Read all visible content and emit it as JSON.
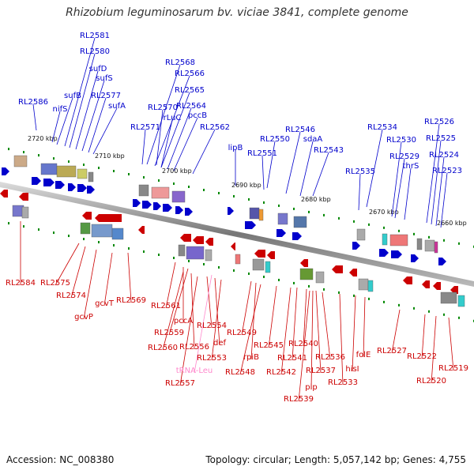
{
  "title": "Rhizobium leguminosarum bv. viciae 3841, complete genome",
  "footer": {
    "accession": "Accession: NC_008380",
    "summary": "Topology: circular; Length: 5,057,142 bp; Genes: 4,755"
  },
  "colors": {
    "forward": "#0000cc",
    "reverse": "#cc0000",
    "trna": "#ff88cc",
    "backbone": "#888888",
    "tick": "#008800"
  },
  "kbp_ticks": [
    "2720 kbp",
    "2710 kbp",
    "2700 kbp",
    "2690 kbp",
    "2680 kbp",
    "2670 kbp",
    "2660 kbp"
  ],
  "forward_labels": [
    "RL2581",
    "RL2580",
    "sufD",
    "sufS",
    "RL2577",
    "sufA",
    "sufB",
    "nifS",
    "RL2586",
    "RL2568",
    "RL2566",
    "RL2565",
    "RL2564",
    "pccB",
    "RL2570",
    "rLuC",
    "RL2571",
    "RL2562",
    "lipB",
    "RL2550",
    "RL2551",
    "RL2546",
    "sdaA",
    "RL2543",
    "RL2534",
    "RL2535",
    "RL2530",
    "RL2529",
    "thrS",
    "RL2526",
    "RL2525",
    "RL2524",
    "RL2523"
  ],
  "reverse_labels": [
    "RL2584",
    "RL2575",
    "RL2574",
    "gcvP",
    "gcvT",
    "RL2569",
    "RL2561",
    "pccA",
    "RL2559",
    "RL2560",
    "RL2556",
    "RL2554",
    "def",
    "RL2553",
    "RL2557",
    "RL2549",
    "rpiB",
    "RL2548",
    "RL2545",
    "RL2542",
    "RL2541",
    "RL2540",
    "RL2539",
    "pip",
    "RL2537",
    "RL2536",
    "RL2533",
    "hisI",
    "folE",
    "RL2527",
    "RL2522",
    "RL2520",
    "RL2519"
  ],
  "trna_labels": [
    "tRNA-Leu"
  ]
}
